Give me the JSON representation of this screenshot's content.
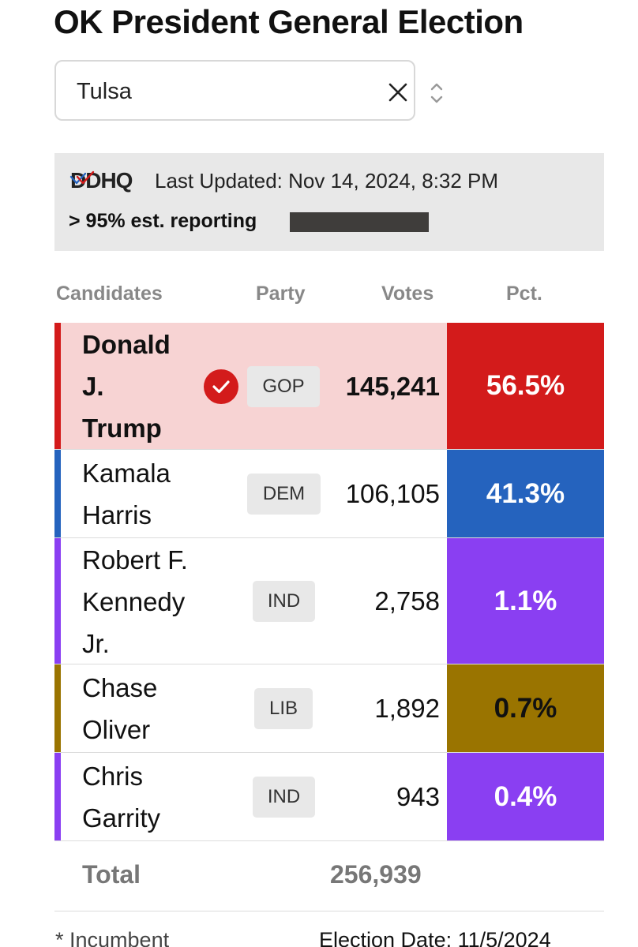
{
  "title": "OK President General Election",
  "county_select": {
    "value": "Tulsa",
    "clear_icon": "close-icon",
    "toggle_icon": "chevron-up-down-icon"
  },
  "info": {
    "logo": "DDHQ",
    "last_updated": "Last Updated: Nov 14, 2024, 8:32 PM",
    "reporting": "> 95% est. reporting",
    "reporting_fill": 0.95
  },
  "table": {
    "headers": {
      "candidates": "Candidates",
      "party": "Party",
      "votes": "Votes",
      "pct": "Pct."
    },
    "rows": [
      {
        "name": "Donald\nJ.\nTrump",
        "party": "GOP",
        "votes": "145,241",
        "pct": "56.5%",
        "color": "#d31b1b",
        "winner": true
      },
      {
        "name": "Kamala\nHarris",
        "party": "DEM",
        "votes": "106,105",
        "pct": "41.3%",
        "color": "#2563be",
        "winner": false
      },
      {
        "name": "Robert F.\nKennedy\nJr.",
        "party": "IND",
        "votes": "2,758",
        "pct": "1.1%",
        "color": "#8a3ff2",
        "winner": false
      },
      {
        "name": "Chase\nOliver",
        "party": "LIB",
        "votes": "1,892",
        "pct": "0.7%",
        "color": "#9a7400",
        "winner": false
      },
      {
        "name": "Chris\nGarrity",
        "party": "IND",
        "votes": "943",
        "pct": "0.4%",
        "color": "#8a3ff2",
        "winner": false
      }
    ],
    "total_label": "Total",
    "total_votes": "256,939"
  },
  "footer": {
    "incumbent": "* Incumbent",
    "election_date": "Election Date: 11/5/2024"
  }
}
